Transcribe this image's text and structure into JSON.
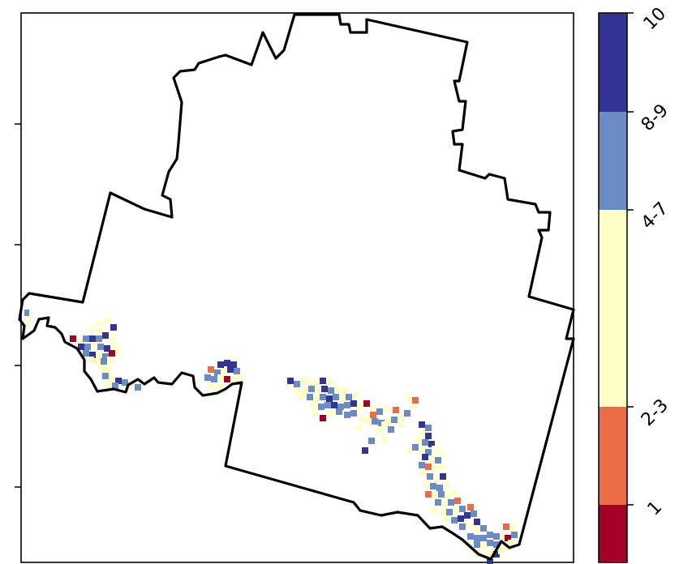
{
  "map": {
    "classes": [
      {
        "label": "10",
        "color": "#313695"
      },
      {
        "label": "8-9",
        "color": "#6b8bc5"
      },
      {
        "label": "4-7",
        "color": "#ffffc6"
      },
      {
        "label": "2-3",
        "color": "#ea6d46"
      },
      {
        "label": "1",
        "color": "#a50026"
      }
    ],
    "boundary_color": "#000000"
  }
}
